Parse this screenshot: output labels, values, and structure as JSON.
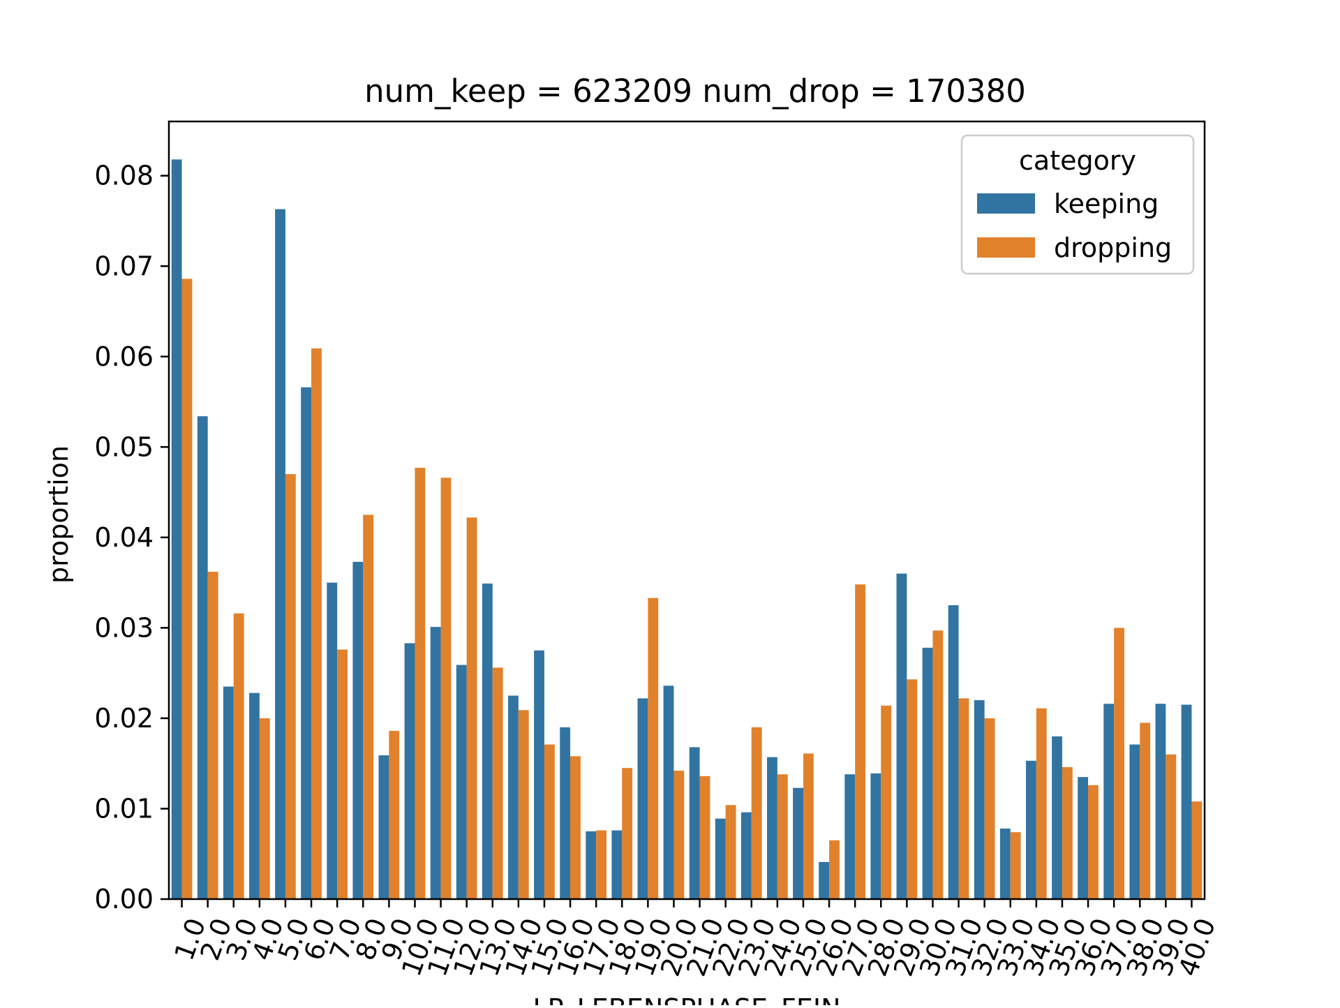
{
  "chart_data": {
    "type": "bar",
    "title": "num_keep = 623209  num_drop = 170380",
    "xlabel": "LP_LEBENSPHASE_FEIN",
    "ylabel": "proportion",
    "ylim": [
      0,
      0.086
    ],
    "yticks": [
      "0.00",
      "0.01",
      "0.02",
      "0.03",
      "0.04",
      "0.05",
      "0.06",
      "0.07",
      "0.08"
    ],
    "grid": false,
    "legend": {
      "title": "category",
      "position": "top-right"
    },
    "categories": [
      "1.0",
      "2.0",
      "3.0",
      "4.0",
      "5.0",
      "6.0",
      "7.0",
      "8.0",
      "9.0",
      "10.0",
      "11.0",
      "12.0",
      "13.0",
      "14.0",
      "15.0",
      "16.0",
      "17.0",
      "18.0",
      "19.0",
      "20.0",
      "21.0",
      "22.0",
      "23.0",
      "24.0",
      "25.0",
      "26.0",
      "27.0",
      "28.0",
      "29.0",
      "30.0",
      "31.0",
      "32.0",
      "33.0",
      "34.0",
      "35.0",
      "36.0",
      "37.0",
      "38.0",
      "39.0",
      "40.0"
    ],
    "series": [
      {
        "name": "keeping",
        "color": "#3274a1",
        "values": [
          0.0818,
          0.0534,
          0.0235,
          0.0228,
          0.0763,
          0.0566,
          0.035,
          0.0373,
          0.0159,
          0.0283,
          0.0301,
          0.0259,
          0.0349,
          0.0225,
          0.0275,
          0.019,
          0.0075,
          0.0076,
          0.0222,
          0.0236,
          0.0168,
          0.0089,
          0.0096,
          0.0157,
          0.0123,
          0.0041,
          0.0138,
          0.0139,
          0.036,
          0.0278,
          0.0325,
          0.022,
          0.0078,
          0.0153,
          0.018,
          0.0135,
          0.0216,
          0.0171,
          0.0216,
          0.0215
        ]
      },
      {
        "name": "dropping",
        "color": "#e1812c",
        "values": [
          0.0686,
          0.0362,
          0.0316,
          0.02,
          0.047,
          0.0609,
          0.0276,
          0.0425,
          0.0186,
          0.0477,
          0.0466,
          0.0422,
          0.0256,
          0.0209,
          0.0171,
          0.0158,
          0.0076,
          0.0145,
          0.0333,
          0.0142,
          0.0136,
          0.0104,
          0.019,
          0.0138,
          0.0161,
          0.0065,
          0.0348,
          0.0214,
          0.0243,
          0.0297,
          0.0222,
          0.02,
          0.0074,
          0.0211,
          0.0146,
          0.0126,
          0.03,
          0.0195,
          0.016,
          0.0108
        ]
      }
    ]
  }
}
